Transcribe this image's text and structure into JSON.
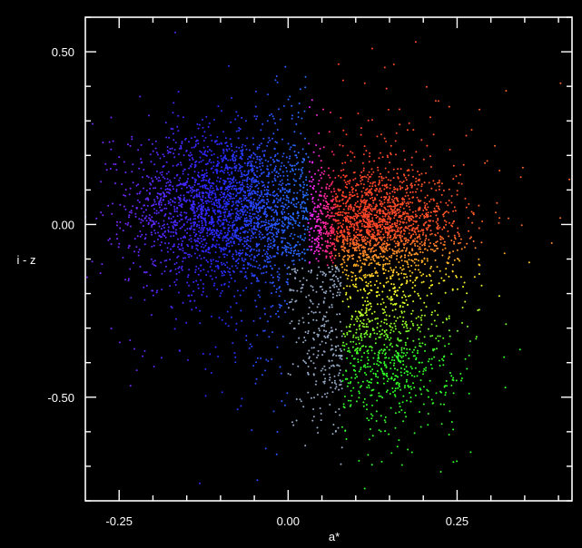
{
  "chart_data": {
    "type": "scatter",
    "title": "",
    "xlabel": "a*",
    "ylabel": "i - z",
    "xlim": [
      -0.3,
      0.42
    ],
    "ylim": [
      -0.8,
      0.6
    ],
    "x_ticks": [
      {
        "value": -0.25,
        "label": "-0.25"
      },
      {
        "value": 0.0,
        "label": "0.00"
      },
      {
        "value": 0.25,
        "label": "0.25"
      }
    ],
    "y_ticks": [
      {
        "value": 0.5,
        "label": "0.50"
      },
      {
        "value": 0.0,
        "label": "0.00"
      },
      {
        "value": -0.5,
        "label": "-0.50"
      }
    ],
    "x_minor_step": 0.05,
    "y_minor_step": 0.1,
    "grid": false,
    "legend": "none",
    "background_color": "#000000",
    "axis_color": "#ffffff",
    "color_encoding": "point color follows a*: blue for negative a*, magenta near a* = 0.05, red/orange/yellow/green for positive a* toward lower i - z",
    "series": [
      {
        "population": "blue clump",
        "center": [
          -0.09,
          0.05
        ],
        "spread": [
          0.07,
          0.11
        ],
        "approx_points": 2300,
        "color": "#3a4dff"
      },
      {
        "population": "red/orange clump",
        "center": [
          0.13,
          -0.01
        ],
        "spread": [
          0.06,
          0.08
        ],
        "approx_points": 1900,
        "color": "#ff6a1f"
      },
      {
        "population": "green tail",
        "center": [
          0.13,
          -0.36
        ],
        "spread": [
          0.06,
          0.12
        ],
        "approx_points": 900,
        "color": "#4ddc2a"
      },
      {
        "population": "diffuse halo",
        "center": [
          0.02,
          -0.05
        ],
        "spread": [
          0.14,
          0.25
        ],
        "approx_points": 700,
        "color": "#7a6bff"
      }
    ]
  }
}
